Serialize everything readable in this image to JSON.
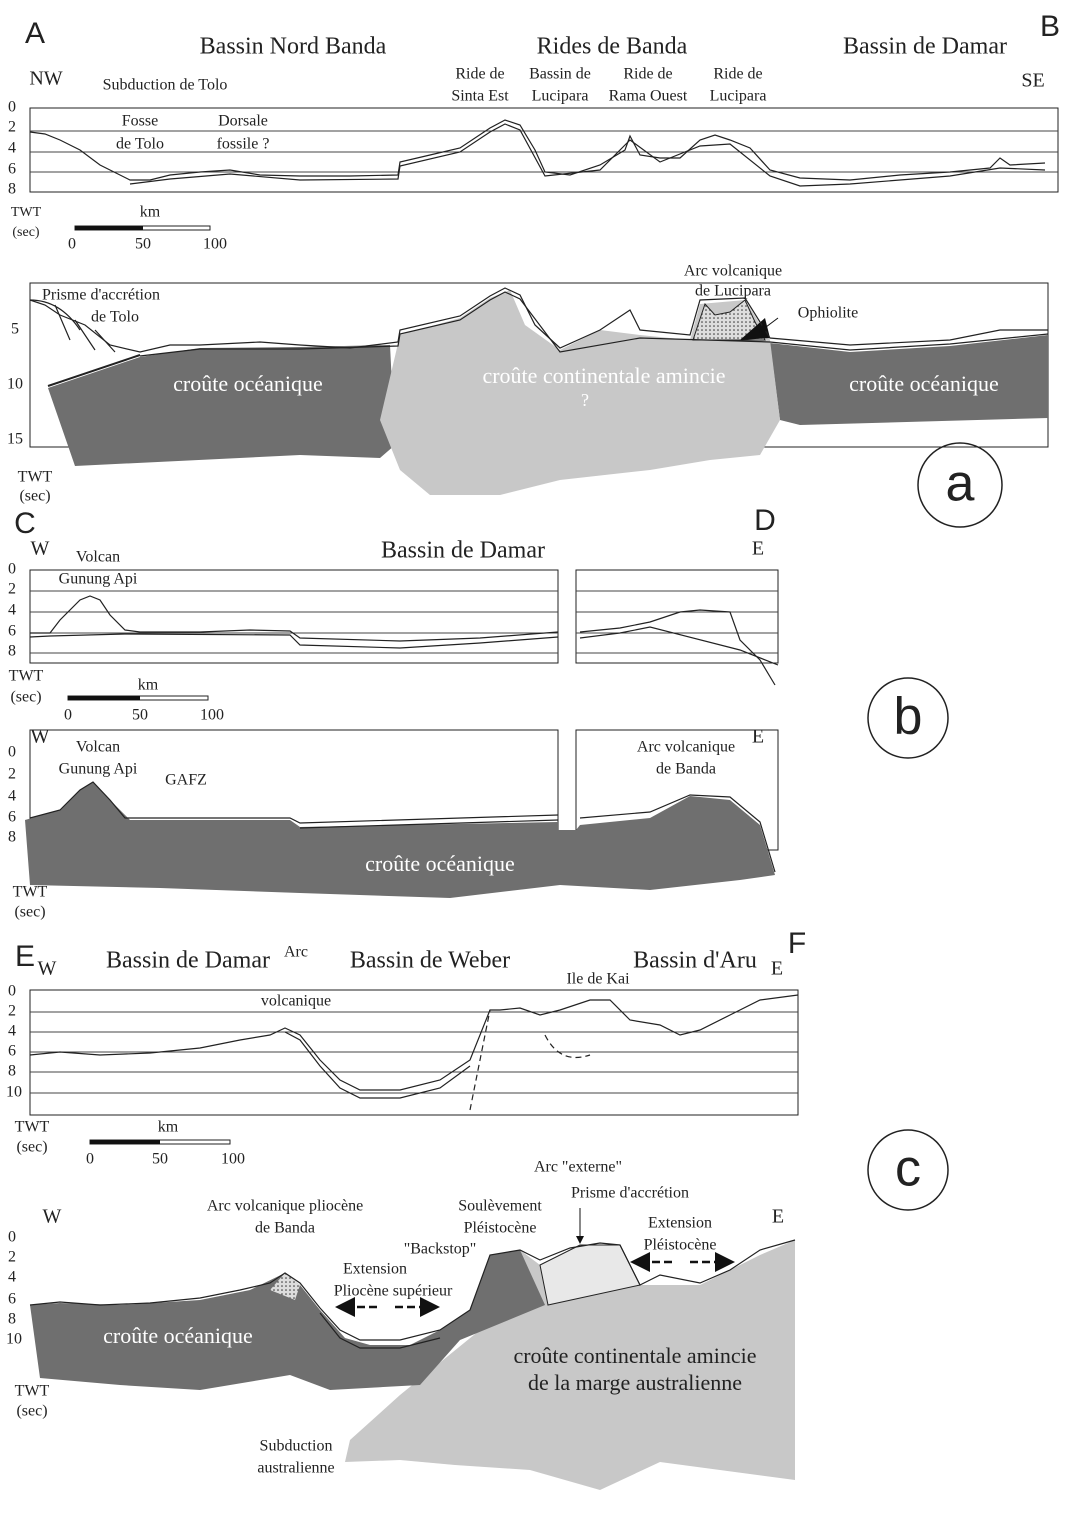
{
  "panel_a": {
    "point_start": "A",
    "point_end": "B",
    "regions": [
      "Bassin Nord Banda",
      "Rides de Banda",
      "Bassin de Damar"
    ],
    "orientation": [
      "NW",
      "SE"
    ],
    "subduction": "Subduction de Tolo",
    "ridges": [
      [
        "Ride de",
        "Sinta Est"
      ],
      [
        "Bassin de",
        "Lucipara"
      ],
      [
        "Ride de",
        "Rama Ouest"
      ],
      [
        "Ride de",
        "Lucipara"
      ]
    ],
    "trench": [
      "Fosse",
      "de Tolo"
    ],
    "fossil_ridge": [
      "Dorsale",
      "fossile ?"
    ],
    "profile_ticks": [
      0,
      2,
      4,
      6,
      8
    ],
    "axis_unit": [
      "TWT",
      "(sec)"
    ],
    "scale_unit": "km",
    "scale_ticks": [
      0,
      50,
      100
    ],
    "section_ticks": [
      5,
      10,
      15
    ],
    "section_axis_unit": [
      "TWT",
      "(sec)"
    ],
    "prism": [
      "Prisme d'accrétion",
      "de Tolo"
    ],
    "arc": [
      "Arc volcanique",
      "de Lucipara"
    ],
    "ophiolite": "Ophiolite",
    "crust_left": "croûte océanique",
    "crust_center": [
      "croûte continentale amincie",
      "?"
    ],
    "crust_right": "croûte océanique",
    "panel": "a"
  },
  "panel_b": {
    "point_start": "C",
    "point_end": "D",
    "region": "Bassin de Damar",
    "orientation": [
      "W",
      "E"
    ],
    "volcano": [
      "Volcan",
      "Gunung Api"
    ],
    "profile_ticks": [
      0,
      2,
      4,
      6,
      8
    ],
    "axis_unit": [
      "TWT",
      "(sec)"
    ],
    "scale_unit": "km",
    "scale_ticks": [
      0,
      50,
      100
    ],
    "section_orientation": [
      "W",
      "E"
    ],
    "section_volcano": [
      "Volcan",
      "Gunung Api"
    ],
    "fault_zone": "GAFZ",
    "arc": [
      "Arc volcanique",
      "de Banda"
    ],
    "section_ticks": [
      0,
      2,
      4,
      6,
      8
    ],
    "crust": "croûte océanique",
    "section_axis_unit": [
      "TWT",
      "(sec)"
    ],
    "panel": "b"
  },
  "panel_c": {
    "point_start": "E",
    "point_end": "F",
    "orientation": [
      "W",
      "E"
    ],
    "regions": [
      "Bassin de Damar",
      "Bassin de Weber",
      "Bassin d'Aru"
    ],
    "arc": [
      "Arc",
      "volcanique"
    ],
    "island": "Ile de Kai",
    "profile_ticks": [
      0,
      2,
      4,
      6,
      8,
      10
    ],
    "axis_unit": [
      "TWT",
      "(sec)"
    ],
    "scale_unit": "km",
    "scale_ticks": [
      0,
      50,
      100
    ],
    "section_orientation": [
      "W",
      "E"
    ],
    "outer_arc": "Arc \"externe\"",
    "prism": "Prisme d'accrétion",
    "pliocene_arc": [
      "Arc volcanique pliocène",
      "de Banda"
    ],
    "uplift": [
      "Soulèvement",
      "Pléistocène"
    ],
    "extension_pleistocene": [
      "Extension",
      "Pléistocène"
    ],
    "backstop": "\"Backstop\"",
    "extension_pliocene": [
      "Extension",
      "Pliocène supérieur"
    ],
    "section_ticks": [
      0,
      2,
      4,
      6,
      8,
      10
    ],
    "crust_oceanic": "croûte océanique",
    "crust_continental": [
      "croûte continentale amincie",
      "de la marge australienne"
    ],
    "section_axis_unit": [
      "TWT",
      "(sec)"
    ],
    "subduction": [
      "Subduction",
      "australienne"
    ],
    "panel": "c"
  }
}
